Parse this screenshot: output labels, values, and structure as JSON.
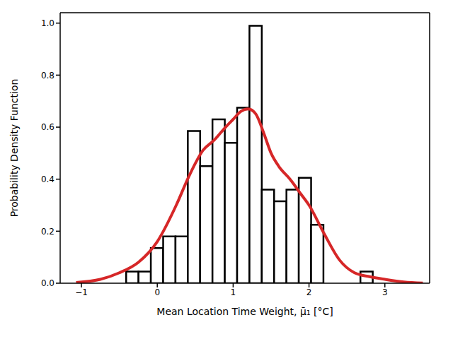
{
  "chart_data": {
    "type": "histogram",
    "x_label": "Mean Location Time Weight, μ̄₁ [°C]",
    "y_label": "Probability Density Function",
    "bins": [
      -0.41,
      -0.2475,
      -0.085,
      0.0775,
      0.24,
      0.4025,
      0.565,
      0.7275,
      0.89,
      1.0525,
      1.215,
      1.3775,
      1.54,
      1.7025,
      1.865,
      2.0275,
      2.19,
      2.3525,
      2.515,
      2.6775,
      2.84
    ],
    "counts": [
      0.045,
      0.045,
      0.135,
      0.18,
      0.18,
      0.585,
      0.45,
      0.63,
      0.54,
      0.675,
      0.99,
      0.36,
      0.315,
      0.36,
      0.405,
      0.225,
      0,
      0,
      0,
      0.045
    ],
    "color": "#ffffff",
    "series": [
      {
        "type": "line",
        "color": "#d62728",
        "x": [
          -1.07,
          -0.75,
          -0.5,
          -0.25,
          0,
          0.25,
          0.4,
          0.5,
          0.6,
          0.75,
          0.9,
          1.0,
          1.1,
          1.2,
          1.3,
          1.4,
          1.5,
          1.6,
          1.75,
          1.9,
          2.0,
          2.2,
          2.4,
          2.6,
          2.8,
          3.0,
          3.25,
          3.5
        ],
        "values": [
          0.003,
          0.015,
          0.04,
          0.08,
          0.16,
          0.3,
          0.4,
          0.46,
          0.51,
          0.55,
          0.6,
          0.63,
          0.66,
          0.67,
          0.65,
          0.58,
          0.5,
          0.45,
          0.4,
          0.34,
          0.3,
          0.19,
          0.09,
          0.04,
          0.025,
          0.015,
          0.005,
          0.001
        ]
      }
    ],
    "xlim": [
      -1.28,
      3.59
    ],
    "ylim": [
      0,
      1.04
    ],
    "xticks": [
      {
        "value": -1,
        "label": "−1"
      },
      0,
      1,
      2,
      3
    ],
    "yticks": [
      {
        "value": 0,
        "label": "0.0"
      },
      {
        "value": 0.2,
        "label": "0.2"
      },
      {
        "value": 0.4,
        "label": "0.4"
      },
      {
        "value": 0.6,
        "label": "0.6"
      },
      {
        "value": 0.8,
        "label": "0.8"
      },
      {
        "value": 1.0,
        "label": "1.0"
      }
    ],
    "grid": false
  }
}
